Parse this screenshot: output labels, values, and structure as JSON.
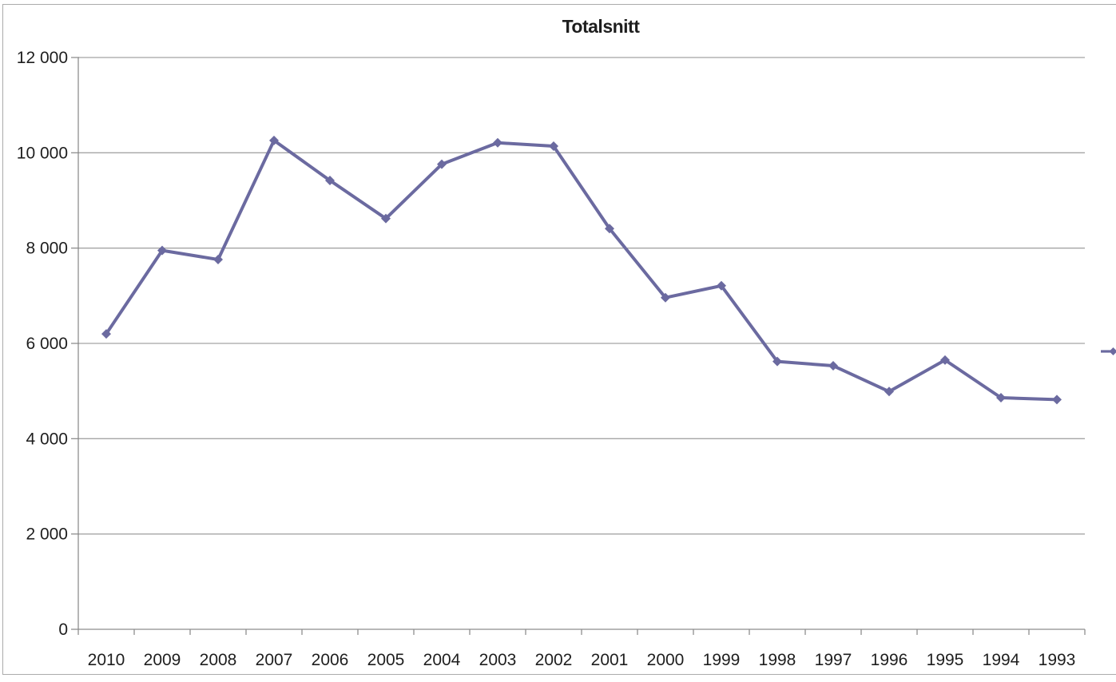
{
  "title": "Totalsnitt",
  "colors": {
    "series": "#6B6AA0",
    "gridline": "#a5a5a5",
    "axis": "#8e8e8e",
    "text": "#1e1e1e",
    "border": "#ababab",
    "background": "#ffffff"
  },
  "legend_fragment_visible": true,
  "chart_data": {
    "type": "line",
    "title": "Totalsnitt",
    "categories": [
      "2010",
      "2009",
      "2008",
      "2007",
      "2006",
      "2005",
      "2004",
      "2003",
      "2002",
      "2001",
      "2000",
      "1999",
      "1998",
      "1997",
      "1996",
      "1995",
      "1994",
      "1993"
    ],
    "values": [
      6200,
      7950,
      7760,
      10260,
      9420,
      8620,
      9760,
      10210,
      10140,
      8410,
      6960,
      7210,
      5620,
      5530,
      4990,
      5650,
      4860,
      4820
    ],
    "ylim": [
      0,
      12000
    ],
    "ytick_step": 2000,
    "ytick_labels": [
      "0",
      "2 000",
      "4 000",
      "6 000",
      "8 000",
      "10 000",
      "12 000"
    ],
    "grid": true,
    "marker": "diamond",
    "legend": "cropped at right edge, no visible text"
  }
}
